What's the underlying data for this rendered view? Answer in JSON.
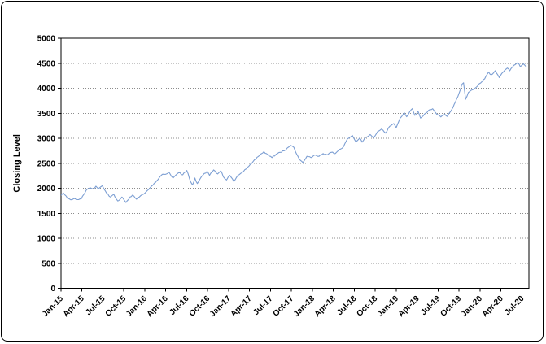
{
  "window": {
    "background_color": "#ffffff",
    "border_color": "#000000"
  },
  "chart_data": {
    "type": "line",
    "title": "",
    "xlabel": "",
    "ylabel": "Closing Level",
    "legend": "none",
    "grid": "horizontal dotted gridlines at every 500",
    "ylim": [
      0,
      5000
    ],
    "ytick_step": 500,
    "ytick_labels": [
      "0",
      "500",
      "1000",
      "1500",
      "2000",
      "2500",
      "3000",
      "3500",
      "4000",
      "4500",
      "5000"
    ],
    "xtick_labels": [
      "Jan-15",
      "Apr-15",
      "Jul-15",
      "Oct-15",
      "Jan-16",
      "Apr-16",
      "Jul-16",
      "Oct-16",
      "Jan-17",
      "Apr-17",
      "Jul-17",
      "Oct-17",
      "Jan-18",
      "Apr-18",
      "Jul-18",
      "Oct-18",
      "Jan-19",
      "Apr-19",
      "Jul-19",
      "Oct-19",
      "Jan-20",
      "Apr-20",
      "Jul-20"
    ],
    "x_unit": "months since Jan-2015",
    "x_months_per_tick": 3,
    "x_range_months": [
      0,
      67
    ],
    "line_color": "#7d9fd3",
    "gridline_color": "#8c8c8c",
    "axis_color": "#000000",
    "series": [
      {
        "name": "Closing Level",
        "color": "#7d9fd3",
        "points": [
          [
            0,
            1860
          ],
          [
            0.35,
            1905
          ],
          [
            0.93,
            1800
          ],
          [
            1.39,
            1770
          ],
          [
            1.86,
            1798
          ],
          [
            2.32,
            1775
          ],
          [
            2.9,
            1790
          ],
          [
            3.6,
            1960
          ],
          [
            4.18,
            2010
          ],
          [
            4.65,
            1990
          ],
          [
            5,
            2042
          ],
          [
            5.35,
            1988
          ],
          [
            5.93,
            2053
          ],
          [
            6.51,
            1906
          ],
          [
            7.09,
            1825
          ],
          [
            7.55,
            1880
          ],
          [
            8.13,
            1745
          ],
          [
            8.71,
            1825
          ],
          [
            9.06,
            1760
          ],
          [
            9.3,
            1717
          ],
          [
            9.88,
            1825
          ],
          [
            10.23,
            1863
          ],
          [
            10.81,
            1782
          ],
          [
            11.39,
            1852
          ],
          [
            12.2,
            1933
          ],
          [
            12.55,
            1977
          ],
          [
            13.01,
            2050
          ],
          [
            13.71,
            2150
          ],
          [
            14.52,
            2280
          ],
          [
            15.11,
            2287
          ],
          [
            15.46,
            2325
          ],
          [
            16.04,
            2205
          ],
          [
            16.85,
            2313
          ],
          [
            17.43,
            2271
          ],
          [
            18.01,
            2357
          ],
          [
            18.59,
            2123
          ],
          [
            18.83,
            2068
          ],
          [
            19.17,
            2205
          ],
          [
            19.52,
            2096
          ],
          [
            20.1,
            2232
          ],
          [
            20.92,
            2341
          ],
          [
            21.27,
            2260
          ],
          [
            21.85,
            2368
          ],
          [
            22.43,
            2287
          ],
          [
            22.89,
            2350
          ],
          [
            23.24,
            2232
          ],
          [
            23.71,
            2167
          ],
          [
            24.17,
            2260
          ],
          [
            24.75,
            2134
          ],
          [
            25.33,
            2260
          ],
          [
            25.92,
            2313
          ],
          [
            26.73,
            2422
          ],
          [
            27.31,
            2500
          ],
          [
            27.89,
            2585
          ],
          [
            28.47,
            2667
          ],
          [
            29.05,
            2732
          ],
          [
            29.63,
            2667
          ],
          [
            30.21,
            2613
          ],
          [
            30.79,
            2680
          ],
          [
            31.37,
            2720
          ],
          [
            31.95,
            2750
          ],
          [
            32.65,
            2830
          ],
          [
            32.88,
            2857
          ],
          [
            33.35,
            2818
          ],
          [
            33.7,
            2695
          ],
          [
            34.28,
            2558
          ],
          [
            34.63,
            2515
          ],
          [
            35.21,
            2640
          ],
          [
            35.79,
            2613
          ],
          [
            36.37,
            2667
          ],
          [
            36.95,
            2640
          ],
          [
            37.53,
            2695
          ],
          [
            38.11,
            2667
          ],
          [
            38.7,
            2720
          ],
          [
            39.28,
            2695
          ],
          [
            39.86,
            2776
          ],
          [
            40.44,
            2830
          ],
          [
            41.02,
            2990
          ],
          [
            41.72,
            3058
          ],
          [
            42.18,
            2939
          ],
          [
            42.76,
            3000
          ],
          [
            43.11,
            2922
          ],
          [
            43.69,
            3022
          ],
          [
            44.27,
            3076
          ],
          [
            44.74,
            3006
          ],
          [
            45.32,
            3130
          ],
          [
            45.9,
            3185
          ],
          [
            46.48,
            3103
          ],
          [
            47.06,
            3240
          ],
          [
            47.64,
            3294
          ],
          [
            47.99,
            3212
          ],
          [
            48.57,
            3403
          ],
          [
            49.15,
            3512
          ],
          [
            49.5,
            3430
          ],
          [
            49.97,
            3538
          ],
          [
            50.32,
            3594
          ],
          [
            50.66,
            3457
          ],
          [
            51.13,
            3538
          ],
          [
            51.48,
            3403
          ],
          [
            52.06,
            3485
          ],
          [
            52.64,
            3560
          ],
          [
            53.22,
            3590
          ],
          [
            53.8,
            3481
          ],
          [
            54.38,
            3427
          ],
          [
            54.96,
            3481
          ],
          [
            55.31,
            3437
          ],
          [
            55.78,
            3535
          ],
          [
            56.13,
            3616
          ],
          [
            56.48,
            3725
          ],
          [
            56.83,
            3834
          ],
          [
            57.18,
            3970
          ],
          [
            57.41,
            4080
          ],
          [
            57.64,
            4110
          ],
          [
            57.93,
            3780
          ],
          [
            58.33,
            3916
          ],
          [
            58.92,
            3970
          ],
          [
            59.5,
            4024
          ],
          [
            60.08,
            4105
          ],
          [
            60.66,
            4187
          ],
          [
            61.24,
            4323
          ],
          [
            61.59,
            4268
          ],
          [
            62.17,
            4349
          ],
          [
            62.75,
            4214
          ],
          [
            63.33,
            4323
          ],
          [
            63.91,
            4404
          ],
          [
            64.26,
            4349
          ],
          [
            64.84,
            4458
          ],
          [
            65.42,
            4512
          ],
          [
            65.77,
            4431
          ],
          [
            66.24,
            4486
          ],
          [
            66.7,
            4420
          ]
        ]
      }
    ]
  }
}
